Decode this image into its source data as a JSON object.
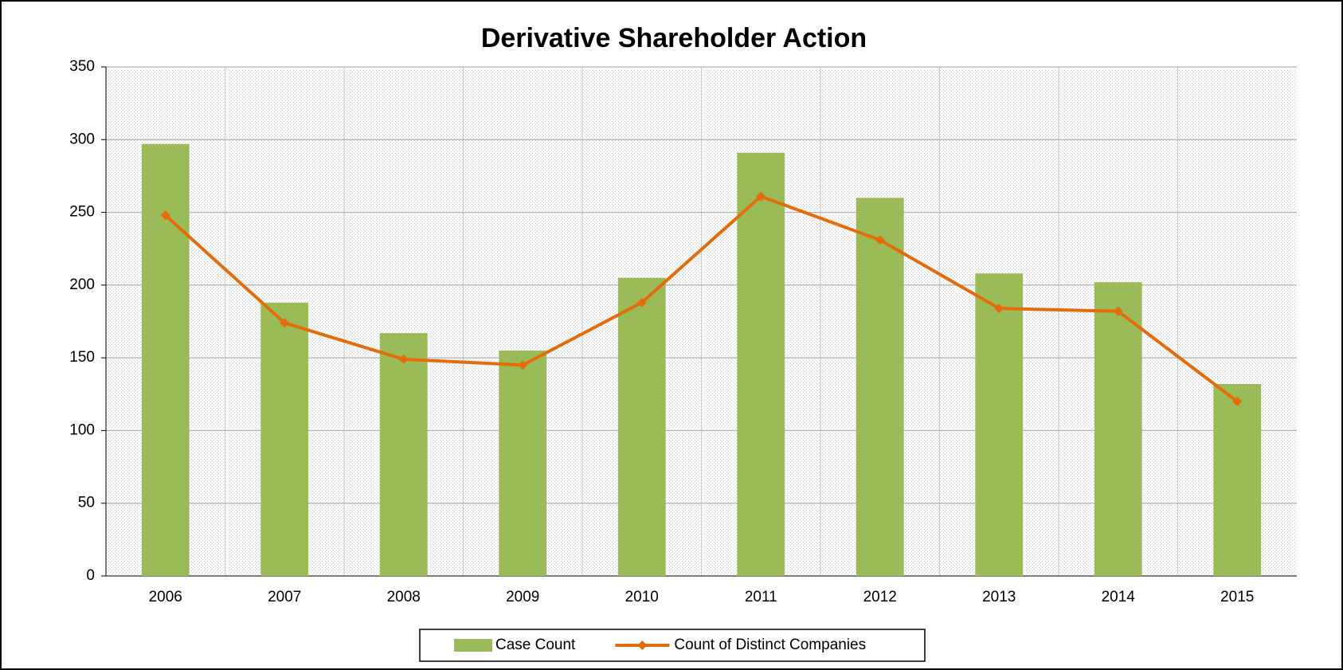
{
  "chart_data": {
    "type": "bar_line",
    "title": "Derivative Shareholder Action",
    "categories": [
      "2006",
      "2007",
      "2008",
      "2009",
      "2010",
      "2011",
      "2012",
      "2013",
      "2014",
      "2015"
    ],
    "series": [
      {
        "name": "Case Count",
        "type": "bar",
        "color": "#9bbb59",
        "values": [
          297,
          188,
          167,
          155,
          205,
          291,
          260,
          208,
          202,
          132
        ]
      },
      {
        "name": "Count of Distinct Companies",
        "type": "line",
        "color": "#e46c0a",
        "values": [
          248,
          174,
          149,
          145,
          188,
          261,
          231,
          184,
          182,
          120
        ]
      }
    ],
    "ylim": [
      0,
      350
    ],
    "yticks": [
      0,
      50,
      100,
      150,
      200,
      250,
      300,
      350
    ],
    "grid": true,
    "legend": "bottom"
  }
}
